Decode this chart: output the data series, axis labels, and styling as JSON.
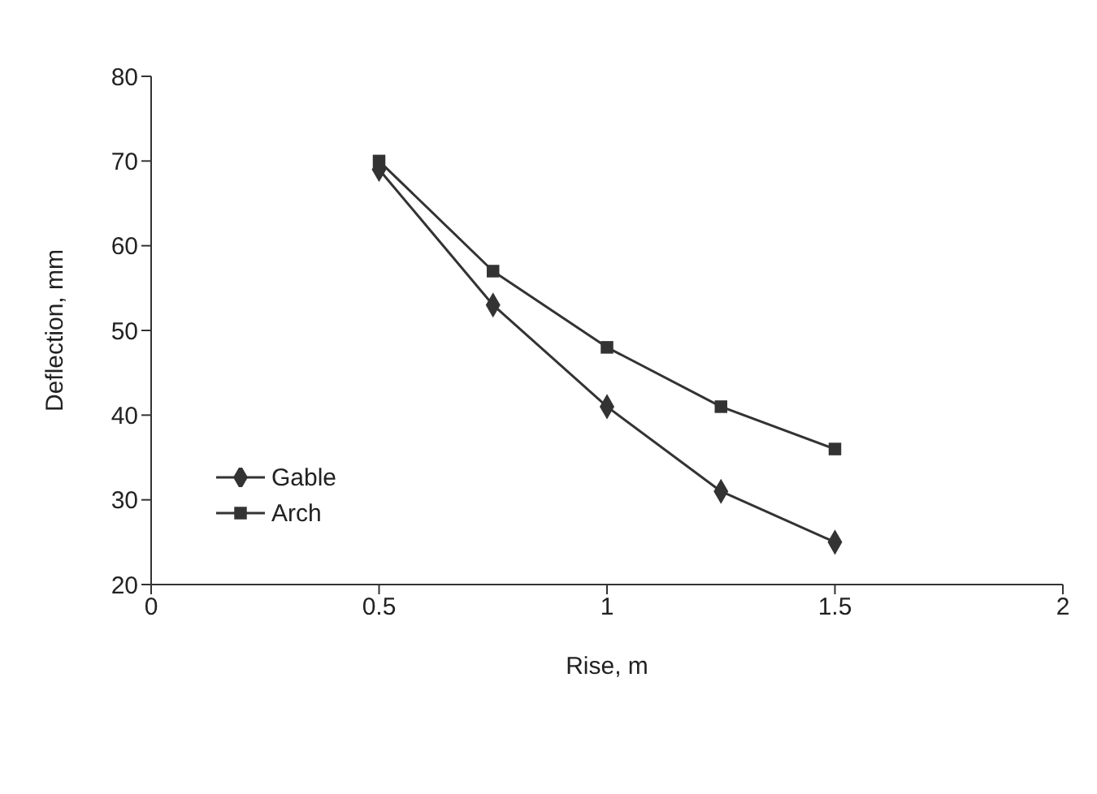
{
  "chart_data": {
    "type": "line",
    "xlabel": "Rise, m",
    "ylabel": "Deflection, mm",
    "x": [
      0.5,
      0.75,
      1,
      1.25,
      1.5
    ],
    "series": [
      {
        "name": "Gable",
        "color": "#333333",
        "marker": "diamond",
        "values": [
          69,
          53,
          41,
          31,
          25
        ]
      },
      {
        "name": "Arch",
        "color": "#333333",
        "marker": "square",
        "values": [
          70,
          57,
          48,
          41,
          36
        ]
      }
    ],
    "xlim": [
      0,
      2
    ],
    "xticks": [
      0,
      0.5,
      1,
      1.5,
      2
    ],
    "ylim": [
      20,
      80
    ],
    "yticks": [
      20,
      30,
      40,
      50,
      60,
      70,
      80
    ],
    "grid": false,
    "legend": "left",
    "line_style": "solid"
  }
}
